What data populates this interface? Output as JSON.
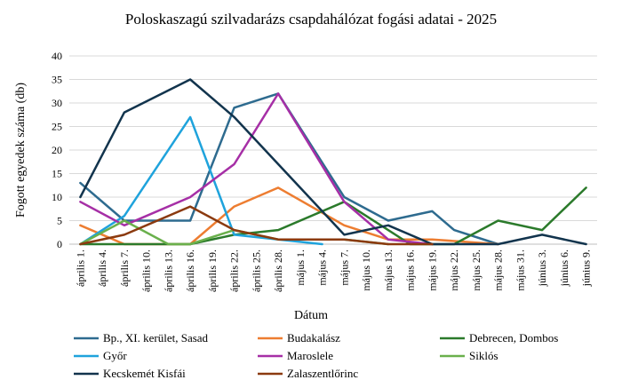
{
  "chart_data": {
    "type": "line",
    "title": "Poloskaszagú szilvadarázs csapdahálózat fogási adatai - 2025",
    "xlabel": "Dátum",
    "ylabel": "Fogott egyedek száma (db)",
    "ylim": [
      0,
      40
    ],
    "yticks": [
      0,
      5,
      10,
      15,
      20,
      25,
      30,
      35,
      40
    ],
    "grid": true,
    "legend_position": "bottom",
    "categories": [
      "április 1.",
      "április 4.",
      "április 7.",
      "április 10.",
      "április 13.",
      "április 16.",
      "április 19.",
      "április 22.",
      "április 25.",
      "április 28.",
      "május 1.",
      "május 4.",
      "május 7.",
      "május 10.",
      "május 13.",
      "május 16.",
      "május 19.",
      "május 22.",
      "május 25.",
      "május 28.",
      "május 31.",
      "június 3.",
      "június 6.",
      "június 9."
    ],
    "series": [
      {
        "name": "Bp., XI. kerület, Sasad",
        "color": "#2e6b8f",
        "points": [
          [
            0,
            13
          ],
          [
            2,
            5
          ],
          [
            4,
            5
          ],
          [
            5,
            5
          ],
          [
            7,
            29
          ],
          [
            9,
            32
          ],
          [
            12,
            10
          ],
          [
            14,
            5
          ],
          [
            16,
            7
          ],
          [
            17,
            3
          ],
          [
            19,
            0
          ]
        ]
      },
      {
        "name": "Budakalász",
        "color": "#ed7d31",
        "points": [
          [
            0,
            4
          ],
          [
            2,
            0
          ],
          [
            5,
            0
          ],
          [
            7,
            8
          ],
          [
            9,
            12
          ],
          [
            12,
            4
          ],
          [
            14,
            1
          ],
          [
            16,
            1
          ],
          [
            19,
            0
          ]
        ]
      },
      {
        "name": "Debrecen, Dombos",
        "color": "#2b7a2b",
        "points": [
          [
            0,
            0
          ],
          [
            5,
            0
          ],
          [
            7,
            2
          ],
          [
            9,
            3
          ],
          [
            12,
            9
          ],
          [
            15,
            0
          ],
          [
            17,
            0
          ],
          [
            19,
            5
          ],
          [
            21,
            3
          ],
          [
            23,
            12
          ]
        ]
      },
      {
        "name": "Győr",
        "color": "#1fa3dc",
        "points": [
          [
            0,
            0
          ],
          [
            2,
            6
          ],
          [
            5,
            27
          ],
          [
            7,
            2
          ],
          [
            9,
            1
          ],
          [
            11,
            0
          ]
        ]
      },
      {
        "name": "Maroslele",
        "color": "#a62fa6",
        "points": [
          [
            0,
            9
          ],
          [
            2,
            4
          ],
          [
            5,
            10
          ],
          [
            7,
            17
          ],
          [
            9,
            32
          ],
          [
            12,
            9
          ],
          [
            14,
            1
          ],
          [
            16,
            0
          ]
        ]
      },
      {
        "name": "Siklós",
        "color": "#6ab04c",
        "points": [
          [
            0,
            0
          ],
          [
            2,
            5
          ],
          [
            4,
            0
          ],
          [
            5,
            0
          ],
          [
            7,
            3
          ],
          [
            9,
            1
          ],
          [
            12,
            1
          ],
          [
            14,
            0
          ]
        ]
      },
      {
        "name": "Kecskemét Kisfái",
        "color": "#12344d",
        "points": [
          [
            0,
            10
          ],
          [
            2,
            28
          ],
          [
            5,
            35
          ],
          [
            7,
            27
          ],
          [
            9,
            17
          ],
          [
            12,
            2
          ],
          [
            14,
            4
          ],
          [
            16,
            0
          ],
          [
            19,
            0
          ],
          [
            21,
            2
          ],
          [
            23,
            0
          ]
        ]
      },
      {
        "name": "Zalaszentlőrinc",
        "color": "#8b3a0f",
        "points": [
          [
            0,
            0
          ],
          [
            2,
            2
          ],
          [
            5,
            8
          ],
          [
            7,
            3
          ],
          [
            9,
            1
          ],
          [
            12,
            1
          ],
          [
            14,
            0
          ],
          [
            16,
            0
          ]
        ]
      }
    ]
  }
}
